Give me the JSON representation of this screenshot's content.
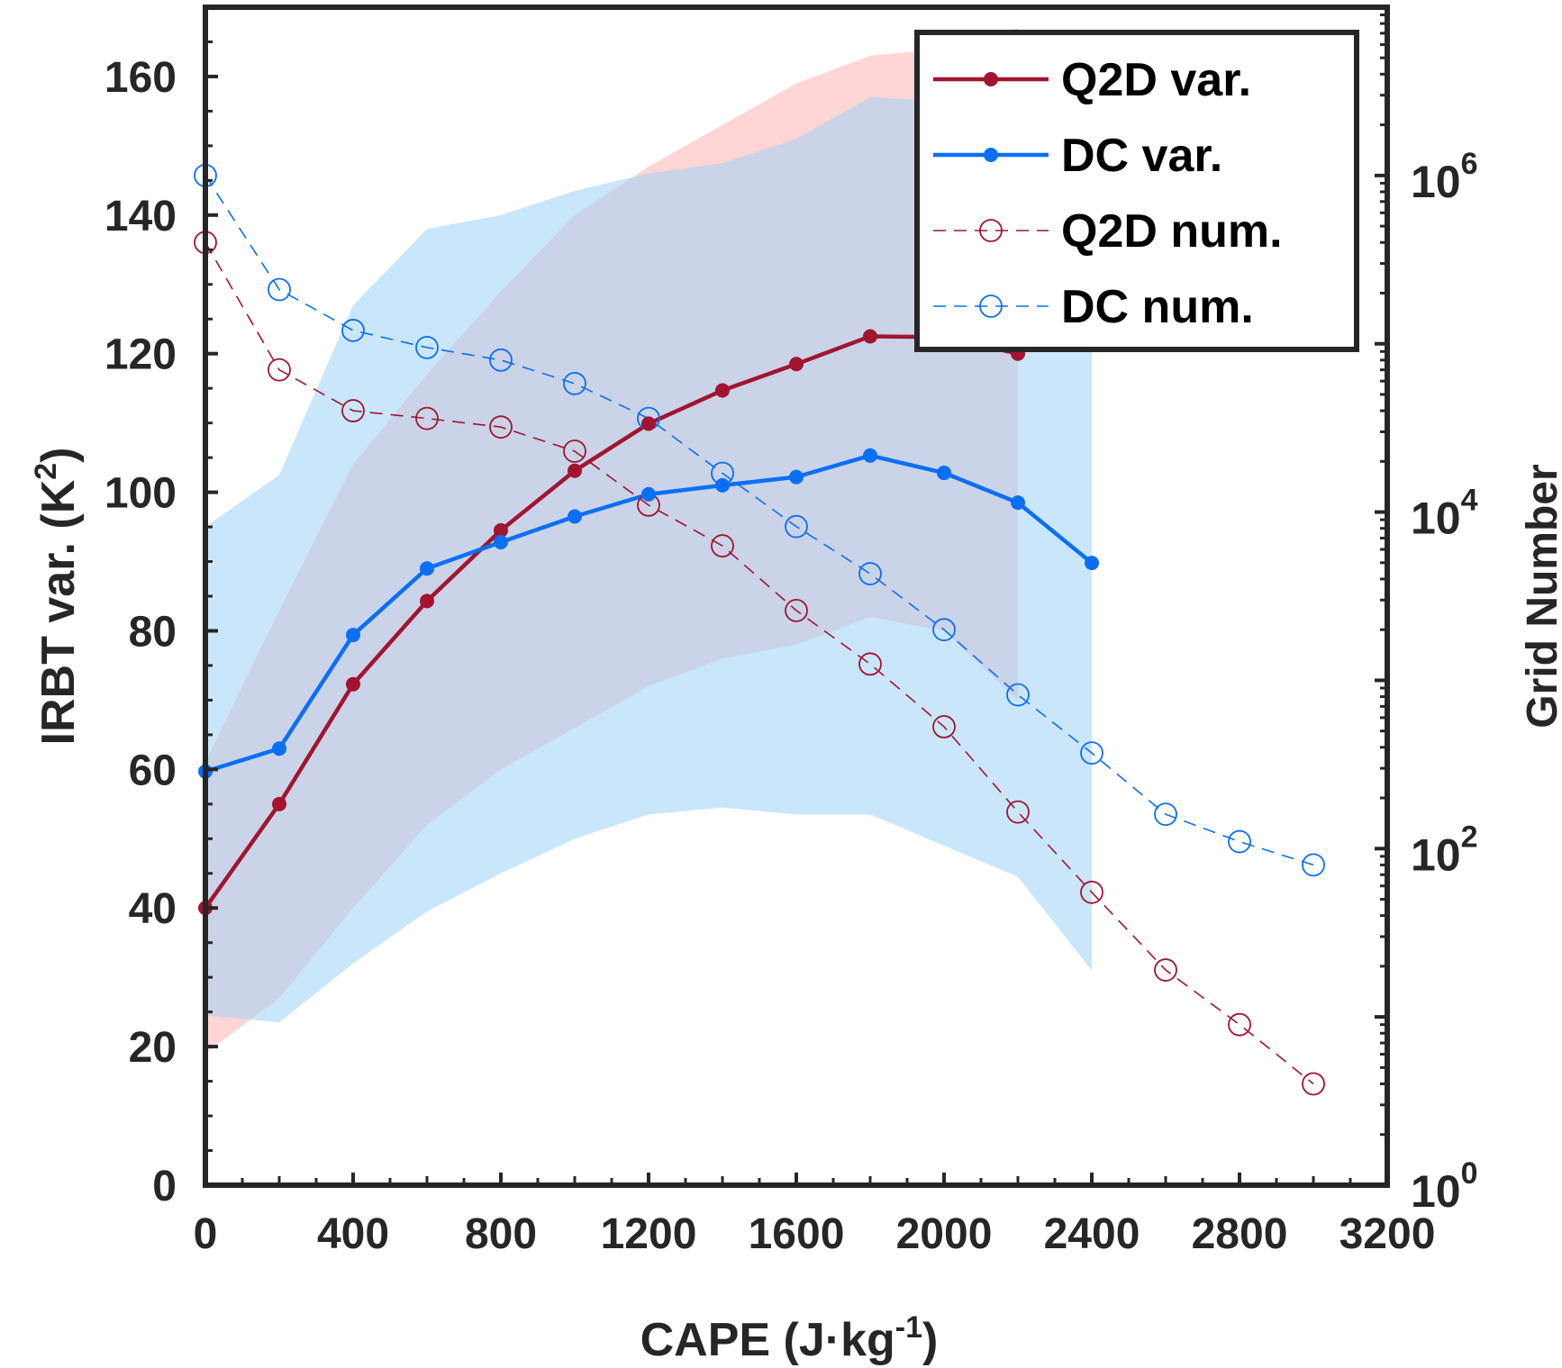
{
  "chart_data": {
    "type": "line",
    "x_axis": {
      "label_text": "CAPE (J",
      "label_dot": "·",
      "label_unit": "kg",
      "label_exp": "-1",
      "label_close": ")",
      "range": [
        0,
        3200
      ],
      "ticks": [
        "0",
        "400",
        "800",
        "1200",
        "1600",
        "2000",
        "2400",
        "2800",
        "3200"
      ]
    },
    "y_axis_left": {
      "label_text": "IRBT var. (K",
      "label_exp": "2",
      "label_close": ")",
      "range": [
        0,
        170
      ],
      "ticks": [
        "0",
        "20",
        "40",
        "60",
        "80",
        "100",
        "120",
        "140",
        "160"
      ]
    },
    "y_axis_right": {
      "label": "Grid Number",
      "scale": "log",
      "range": [
        1,
        10000000
      ],
      "ticks": [
        {
          "base": "10",
          "exp": "0"
        },
        {
          "base": "10",
          "exp": "2"
        },
        {
          "base": "10",
          "exp": "4"
        },
        {
          "base": "10",
          "exp": "6"
        }
      ]
    },
    "legend": {
      "placement": "top-right",
      "entries": [
        "Q2D var.",
        "DC var.",
        "Q2D num.",
        "DC num."
      ]
    },
    "colors": {
      "q2d": "#a2142f",
      "dc": "#0a6ff5",
      "q2d_band": "#ffb3b3",
      "dc_band": "#9fd1f7"
    },
    "series": {
      "q2d_var": {
        "x": [
          0,
          200,
          400,
          600,
          800,
          1000,
          1200,
          1400,
          1600,
          1800,
          2000,
          2200
        ],
        "y": [
          40,
          55,
          72.3,
          84.3,
          94.5,
          103.1,
          109.9,
          114.7,
          118.5,
          122.5,
          122.4,
          120
        ]
      },
      "dc_var": {
        "x": [
          0,
          200,
          400,
          600,
          800,
          1000,
          1200,
          1400,
          1600,
          1800,
          2000,
          2200,
          2400
        ],
        "y": [
          59.7,
          63.0,
          79.4,
          89.0,
          92.8,
          96.5,
          99.7,
          101.0,
          102.2,
          105.3,
          102.8,
          98.5,
          89.8
        ]
      },
      "q2d_band": {
        "x": [
          0,
          200,
          400,
          600,
          800,
          1000,
          1200,
          1400,
          1600,
          1800,
          2000,
          2200
        ],
        "upper": [
          61,
          83,
          104,
          117,
          129,
          140,
          147,
          153,
          159,
          163,
          164,
          167
        ],
        "lower": [
          19,
          27,
          40,
          52,
          60,
          66,
          72,
          76,
          78,
          82,
          80,
          70
        ]
      },
      "dc_band": {
        "x": [
          0,
          200,
          400,
          600,
          800,
          1000,
          1200,
          1400,
          1600,
          1800,
          2000,
          2200,
          2400
        ],
        "upper": [
          95,
          102.5,
          127,
          138,
          140,
          143.5,
          146,
          147.5,
          151,
          157,
          156.5,
          152.5,
          149.5
        ],
        "lower": [
          24.5,
          23.5,
          32,
          39.5,
          45,
          50,
          53.5,
          54.5,
          53.5,
          53.5,
          49,
          44.5,
          31
        ]
      },
      "q2d_num": {
        "x": [
          0,
          200,
          400,
          600,
          800,
          1000,
          1200,
          1400,
          1600,
          1800,
          2000,
          2200,
          2400,
          2600,
          2800,
          3000
        ],
        "y": [
          400000,
          70000,
          40000,
          36000,
          32000,
          23000,
          11000,
          6300,
          2600,
          1250,
          530,
          165,
          55,
          19,
          9,
          4
        ]
      },
      "dc_num": {
        "x": [
          0,
          200,
          400,
          600,
          800,
          1000,
          1200,
          1400,
          1600,
          1800,
          2000,
          2200,
          2400,
          2600,
          2800,
          3000
        ],
        "y": [
          1000000,
          210000,
          120000,
          95000,
          80000,
          58000,
          36000,
          17000,
          8200,
          4300,
          2000,
          820,
          370,
          160,
          110,
          80
        ]
      }
    }
  }
}
